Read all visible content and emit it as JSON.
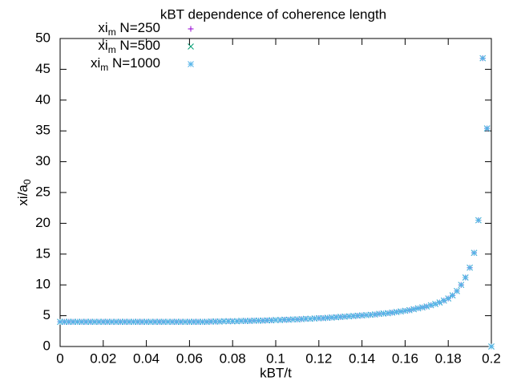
{
  "chart_data": {
    "type": "scatter",
    "title": "kBT dependence of coherence length",
    "x_label": "kBT/t",
    "y_label": [
      "xi/a",
      "0"
    ],
    "xlim": [
      0,
      0.2
    ],
    "ylim": [
      0,
      50
    ],
    "xticks": [
      0,
      0.02,
      0.04,
      0.06,
      0.08,
      0.1,
      0.12,
      0.14,
      0.16,
      0.18,
      0.2
    ],
    "yticks": [
      0,
      5,
      10,
      15,
      20,
      25,
      30,
      35,
      40,
      45,
      50
    ],
    "x": [
      0,
      0.002,
      0.004,
      0.006,
      0.008,
      0.01,
      0.012,
      0.014,
      0.016,
      0.018,
      0.02,
      0.022,
      0.024,
      0.026,
      0.028,
      0.03,
      0.032,
      0.034,
      0.036,
      0.038,
      0.04,
      0.042,
      0.044,
      0.046,
      0.048,
      0.05,
      0.052,
      0.054,
      0.056,
      0.058,
      0.06,
      0.062,
      0.064,
      0.066,
      0.068,
      0.07,
      0.072,
      0.074,
      0.076,
      0.078,
      0.08,
      0.082,
      0.084,
      0.086,
      0.088,
      0.09,
      0.092,
      0.094,
      0.096,
      0.098,
      0.1,
      0.102,
      0.104,
      0.106,
      0.108,
      0.11,
      0.112,
      0.114,
      0.116,
      0.118,
      0.12,
      0.122,
      0.124,
      0.126,
      0.128,
      0.13,
      0.132,
      0.134,
      0.136,
      0.138,
      0.14,
      0.142,
      0.144,
      0.146,
      0.148,
      0.15,
      0.152,
      0.154,
      0.156,
      0.158,
      0.16,
      0.162,
      0.164,
      0.166,
      0.168,
      0.17,
      0.172,
      0.174,
      0.176,
      0.178,
      0.18,
      0.182,
      0.184,
      0.186,
      0.188,
      0.19,
      0.192,
      0.194,
      0.196,
      0.198,
      0.2
    ],
    "series": [
      {
        "name": [
          "xi",
          "m",
          " N=250"
        ],
        "marker": "plus",
        "color": "#9400d3",
        "values": [
          4,
          4,
          4,
          4,
          4,
          4,
          4,
          4,
          4,
          4,
          4,
          4,
          4,
          4,
          4,
          4,
          4,
          4,
          4,
          4,
          4,
          4,
          4,
          4,
          4,
          4,
          4,
          4,
          4,
          4,
          4,
          4,
          4,
          4,
          4,
          4.05,
          4.05,
          4.05,
          4.1,
          4.1,
          4.1,
          4.1,
          4.15,
          4.15,
          4.15,
          4.2,
          4.2,
          4.2,
          4.25,
          4.25,
          4.3,
          4.3,
          4.35,
          4.35,
          4.4,
          4.4,
          4.45,
          4.5,
          4.5,
          4.55,
          4.6,
          4.6,
          4.65,
          4.7,
          4.75,
          4.8,
          4.85,
          4.9,
          4.95,
          5,
          5.05,
          5.1,
          5.15,
          5.2,
          5.3,
          5.35,
          5.4,
          5.5,
          5.6,
          5.7,
          5.8,
          5.9,
          6.05,
          6.2,
          6.35,
          6.5,
          6.7,
          6.9,
          7.15,
          7.45,
          7.8,
          8.3,
          9,
          10,
          11.2,
          12.8,
          15.2,
          20.5,
          46.8,
          35.4,
          0
        ]
      },
      {
        "name": [
          "xi",
          "m",
          " N=500"
        ],
        "marker": "cross",
        "color": "#009e73",
        "values": [
          4,
          4,
          4,
          4,
          4,
          4,
          4,
          4,
          4,
          4,
          4,
          4,
          4,
          4,
          4,
          4,
          4,
          4,
          4,
          4,
          4,
          4,
          4,
          4,
          4,
          4,
          4,
          4,
          4,
          4,
          4,
          4,
          4,
          4,
          4,
          4.05,
          4.05,
          4.05,
          4.1,
          4.1,
          4.1,
          4.1,
          4.15,
          4.15,
          4.15,
          4.2,
          4.2,
          4.2,
          4.25,
          4.25,
          4.3,
          4.3,
          4.35,
          4.35,
          4.4,
          4.4,
          4.45,
          4.5,
          4.5,
          4.55,
          4.6,
          4.6,
          4.65,
          4.7,
          4.75,
          4.8,
          4.85,
          4.9,
          4.95,
          5,
          5.05,
          5.1,
          5.15,
          5.2,
          5.3,
          5.35,
          5.4,
          5.5,
          5.6,
          5.7,
          5.8,
          5.9,
          6.05,
          6.2,
          6.35,
          6.5,
          6.7,
          6.9,
          7.15,
          7.45,
          7.8,
          8.3,
          9,
          10,
          11.2,
          12.8,
          15.2,
          20.5,
          46.8,
          35.4,
          0
        ]
      },
      {
        "name": [
          "xi",
          "m",
          " N=1000"
        ],
        "marker": "star",
        "color": "#56b4e9",
        "values": [
          4,
          4,
          4,
          4,
          4,
          4,
          4,
          4,
          4,
          4,
          4,
          4,
          4,
          4,
          4,
          4,
          4,
          4,
          4,
          4,
          4,
          4,
          4,
          4,
          4,
          4,
          4,
          4,
          4,
          4,
          4,
          4,
          4,
          4,
          4,
          4.05,
          4.05,
          4.05,
          4.1,
          4.1,
          4.1,
          4.1,
          4.15,
          4.15,
          4.15,
          4.2,
          4.2,
          4.2,
          4.25,
          4.25,
          4.3,
          4.3,
          4.35,
          4.35,
          4.4,
          4.4,
          4.45,
          4.5,
          4.5,
          4.55,
          4.6,
          4.6,
          4.65,
          4.7,
          4.75,
          4.8,
          4.85,
          4.9,
          4.95,
          5,
          5.05,
          5.1,
          5.15,
          5.2,
          5.3,
          5.35,
          5.4,
          5.5,
          5.6,
          5.7,
          5.8,
          5.9,
          6.05,
          6.2,
          6.35,
          6.5,
          6.7,
          6.9,
          7.15,
          7.45,
          7.8,
          8.3,
          9,
          10,
          11.2,
          12.8,
          15.2,
          20.5,
          46.8,
          35.4,
          0
        ]
      }
    ]
  }
}
